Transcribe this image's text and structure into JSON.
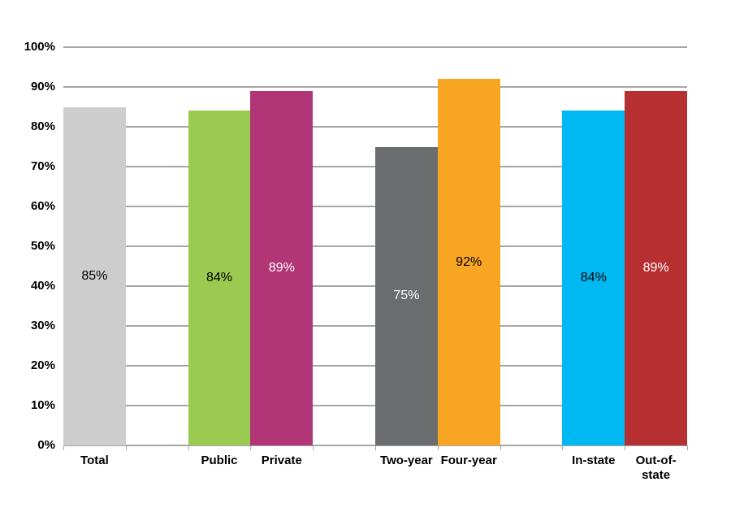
{
  "chart_data": {
    "type": "bar",
    "title": "",
    "legend": "none",
    "grid": true,
    "background": "#ffffff",
    "categories": [
      "Total",
      "Public",
      "Private",
      "Two-year",
      "Four-year",
      "In-state",
      "Out-of-state"
    ],
    "values": [
      85,
      84,
      89,
      75,
      92,
      84,
      89
    ],
    "bars": [
      {
        "category": "Total",
        "value": 85,
        "data_label": "85%",
        "color": "#CDCDCD",
        "label_color": "#000000",
        "slot": 0
      },
      {
        "category": "Public",
        "value": 84,
        "data_label": "84%",
        "color": "#9BCA50",
        "label_color": "#000000",
        "slot": 2
      },
      {
        "category": "Private",
        "value": 89,
        "data_label": "89%",
        "color": "#B13577",
        "label_color": "#FFFFFF",
        "slot": 3
      },
      {
        "category": "Two-year",
        "value": 75,
        "data_label": "75%",
        "color": "#6B6C6E",
        "label_color": "#FFFFFF",
        "slot": 5
      },
      {
        "category": "Four-year",
        "value": 92,
        "data_label": "92%",
        "color": "#F9A524",
        "label_color": "#000000",
        "slot": 6
      },
      {
        "category": "In-state",
        "value": 84,
        "data_label": "84%",
        "color": "#00B9F2",
        "label_color": "#000000",
        "slot": 8
      },
      {
        "category": "Out-of-state",
        "value": 89,
        "data_label": "89%",
        "color": "#B63031",
        "label_color": "#FFFFFF",
        "slot": 9
      }
    ],
    "slots_total": 10,
    "y_axis": {
      "min": 0,
      "max": 100,
      "step": 10,
      "tick_labels": [
        "0%",
        "10%",
        "20%",
        "30%",
        "40%",
        "50%",
        "60%",
        "70%",
        "80%",
        "90%",
        "100%"
      ]
    },
    "xlabel": "",
    "ylabel": "",
    "colors": {
      "gridline": "#A6A6A6",
      "axis_line": "#A6A6A6",
      "text": "#000000"
    }
  }
}
